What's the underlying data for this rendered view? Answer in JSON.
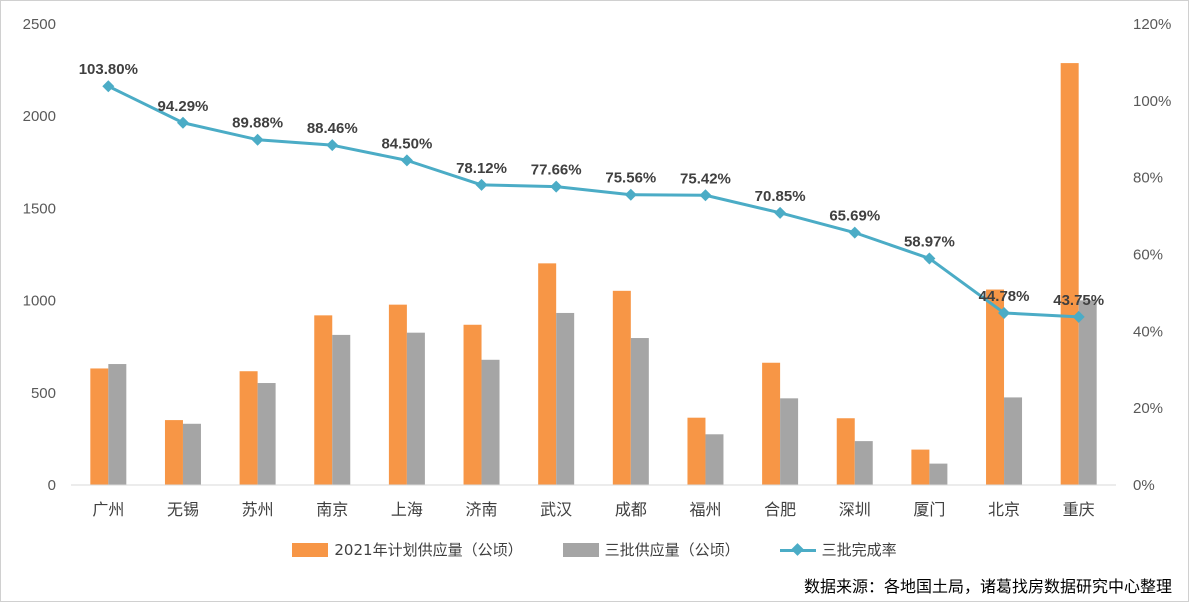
{
  "chart_data": {
    "type": "bar",
    "categories": [
      "广州",
      "无锡",
      "苏州",
      "南京",
      "上海",
      "济南",
      "武汉",
      "成都",
      "福州",
      "合肥",
      "深圳",
      "厦门",
      "北京",
      "重庆"
    ],
    "series": [
      {
        "name": "2021年计划供应量（公顷）",
        "kind": "bar",
        "axis": "left",
        "color": "#F79646",
        "values": [
          632,
          352,
          617,
          920,
          978,
          869,
          1202,
          1053,
          365,
          663,
          362,
          192,
          1060,
          2288
        ]
      },
      {
        "name": "三批供应量（公顷）",
        "kind": "bar",
        "axis": "left",
        "color": "#A5A5A5",
        "values": [
          656,
          332,
          553,
          814,
          826,
          679,
          933,
          797,
          275,
          470,
          238,
          116,
          475,
          1001
        ]
      },
      {
        "name": "三批完成率",
        "kind": "line",
        "axis": "right",
        "color": "#4BACC6",
        "values": [
          103.8,
          94.29,
          89.88,
          88.46,
          84.5,
          78.12,
          77.66,
          75.56,
          75.42,
          70.85,
          65.69,
          58.97,
          44.78,
          43.75
        ],
        "labels": [
          "103.80%",
          "94.29%",
          "89.88%",
          "88.46%",
          "84.50%",
          "78.12%",
          "77.66%",
          "75.56%",
          "75.42%",
          "70.85%",
          "65.69%",
          "58.97%",
          "44.78%",
          "43.75%"
        ]
      }
    ],
    "y_left": {
      "lim": [
        0,
        2500
      ],
      "ticks": [
        "0",
        "500",
        "1000",
        "1500",
        "2000",
        "2500"
      ]
    },
    "y_right": {
      "lim": [
        0,
        120
      ],
      "ticks": [
        "0%",
        "20%",
        "40%",
        "60%",
        "80%",
        "100%",
        "120%"
      ]
    },
    "grid": false,
    "legend_position": "bottom"
  },
  "source_note": "数据来源：各地国土局，诸葛找房数据研究中心整理"
}
